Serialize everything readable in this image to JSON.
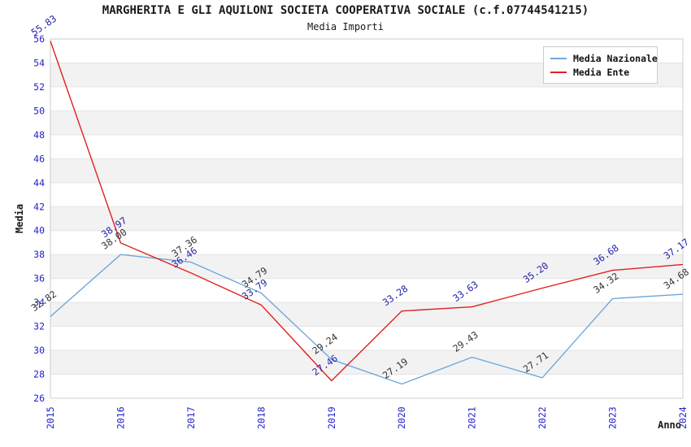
{
  "header": {
    "title": "MARGHERITA E GLI AQUILONI SOCIETA COOPERATIVA SOCIALE (c.f.07744541215)",
    "subtitle": "Media Importi"
  },
  "chart_data": {
    "type": "line",
    "title": "MARGHERITA E GLI AQUILONI SOCIETA COOPERATIVA SOCIALE (c.f.07744541215)",
    "subtitle": "Media Importi",
    "xlabel": "Anno",
    "ylabel": "Media",
    "x": [
      2015,
      2016,
      2017,
      2018,
      2019,
      2020,
      2021,
      2022,
      2023,
      2024
    ],
    "series": [
      {
        "name": "Media Nazionale",
        "color": "#6fa8dc",
        "label_color": "#333333",
        "values": [
          32.82,
          38.0,
          37.36,
          34.79,
          29.24,
          27.19,
          29.43,
          27.71,
          34.32,
          34.68
        ]
      },
      {
        "name": "Media Ente",
        "color": "#e02020",
        "label_color": "#2222aa",
        "values": [
          55.83,
          38.97,
          36.46,
          33.79,
          27.46,
          33.28,
          33.63,
          35.2,
          36.68,
          37.17
        ]
      }
    ],
    "ylim": [
      26,
      56
    ],
    "ytick_step": 2,
    "grid": "horizontal",
    "legend_position": "top-right",
    "colors": {
      "tick_label": "#2222cc",
      "axis_title": "#1a1a1a",
      "band_gray": "#f2f2f2",
      "band_white": "#ffffff",
      "gridline": "#e4e4e4",
      "plot_border": "#cccccc",
      "legend_text": "#111111"
    }
  }
}
